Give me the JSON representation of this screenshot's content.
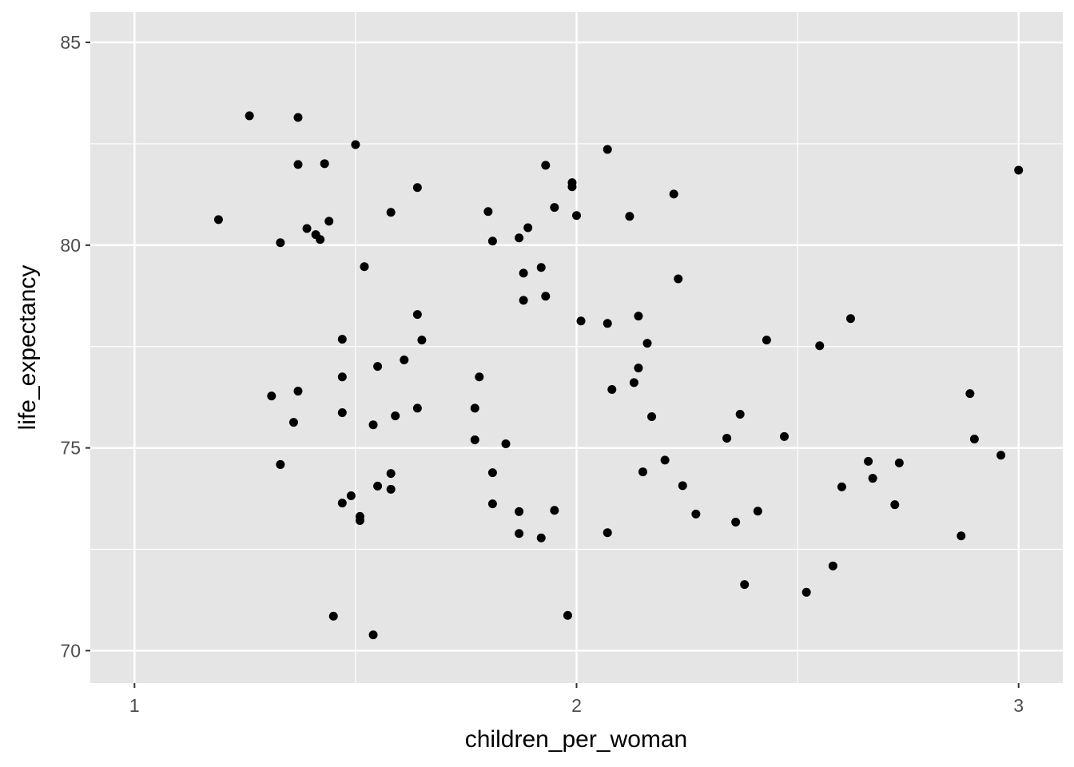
{
  "chart_data": {
    "type": "scatter",
    "title": "",
    "xlabel": "children_per_woman",
    "ylabel": "life_expectancy",
    "xlim": [
      0.9,
      3.1
    ],
    "ylim": [
      69.2,
      85.75
    ],
    "x_ticks": [
      1,
      2,
      3
    ],
    "y_ticks": [
      70,
      75,
      80,
      85
    ],
    "grid": true,
    "colors": {
      "panel": "#e5e5e5",
      "grid": "#ffffff",
      "point": "#000000",
      "tick_text": "#4d4d4d"
    },
    "points": [
      [
        1.19,
        80.63
      ],
      [
        1.26,
        83.19
      ],
      [
        1.37,
        83.15
      ],
      [
        1.37,
        81.99
      ],
      [
        1.43,
        82.01
      ],
      [
        1.5,
        82.48
      ],
      [
        1.33,
        80.06
      ],
      [
        1.39,
        80.41
      ],
      [
        1.41,
        80.26
      ],
      [
        1.42,
        80.14
      ],
      [
        1.44,
        80.59
      ],
      [
        1.52,
        79.47
      ],
      [
        1.58,
        80.81
      ],
      [
        1.64,
        81.42
      ],
      [
        1.31,
        76.28
      ],
      [
        1.37,
        76.4
      ],
      [
        1.36,
        75.63
      ],
      [
        1.33,
        74.59
      ],
      [
        1.47,
        77.68
      ],
      [
        1.47,
        76.75
      ],
      [
        1.47,
        75.87
      ],
      [
        1.47,
        73.64
      ],
      [
        1.49,
        73.82
      ],
      [
        1.51,
        73.31
      ],
      [
        1.51,
        73.21
      ],
      [
        1.45,
        70.85
      ],
      [
        1.54,
        70.39
      ],
      [
        1.54,
        75.57
      ],
      [
        1.55,
        77.01
      ],
      [
        1.55,
        74.06
      ],
      [
        1.58,
        74.37
      ],
      [
        1.58,
        73.98
      ],
      [
        1.59,
        75.79
      ],
      [
        1.61,
        77.17
      ],
      [
        1.64,
        78.29
      ],
      [
        1.65,
        77.66
      ],
      [
        1.64,
        75.98
      ],
      [
        1.77,
        75.98
      ],
      [
        1.78,
        76.75
      ],
      [
        1.77,
        75.2
      ],
      [
        1.84,
        75.1
      ],
      [
        1.81,
        74.39
      ],
      [
        1.81,
        73.62
      ],
      [
        1.8,
        80.83
      ],
      [
        1.81,
        80.1
      ],
      [
        1.87,
        80.18
      ],
      [
        1.89,
        80.43
      ],
      [
        1.88,
        79.31
      ],
      [
        1.88,
        78.64
      ],
      [
        1.92,
        79.45
      ],
      [
        1.93,
        78.74
      ],
      [
        1.93,
        81.97
      ],
      [
        1.95,
        80.93
      ],
      [
        1.99,
        81.54
      ],
      [
        1.99,
        81.44
      ],
      [
        2.0,
        80.73
      ],
      [
        1.87,
        73.43
      ],
      [
        1.87,
        72.89
      ],
      [
        1.92,
        72.78
      ],
      [
        1.95,
        73.46
      ],
      [
        1.98,
        70.87
      ],
      [
        2.01,
        78.13
      ],
      [
        2.07,
        82.36
      ],
      [
        2.07,
        78.07
      ],
      [
        2.08,
        76.44
      ],
      [
        2.07,
        72.91
      ],
      [
        2.12,
        80.71
      ],
      [
        2.22,
        81.26
      ],
      [
        2.23,
        79.17
      ],
      [
        2.14,
        78.25
      ],
      [
        2.16,
        77.58
      ],
      [
        2.14,
        76.97
      ],
      [
        2.13,
        76.61
      ],
      [
        2.17,
        75.77
      ],
      [
        2.2,
        74.7
      ],
      [
        2.15,
        74.41
      ],
      [
        2.24,
        74.07
      ],
      [
        2.27,
        73.37
      ],
      [
        2.34,
        75.24
      ],
      [
        2.37,
        75.83
      ],
      [
        2.36,
        73.17
      ],
      [
        2.41,
        73.44
      ],
      [
        2.38,
        71.63
      ],
      [
        2.43,
        77.66
      ],
      [
        2.47,
        75.28
      ],
      [
        2.52,
        71.44
      ],
      [
        2.55,
        77.52
      ],
      [
        2.58,
        72.09
      ],
      [
        2.6,
        74.04
      ],
      [
        2.62,
        78.19
      ],
      [
        2.66,
        74.67
      ],
      [
        2.67,
        74.25
      ],
      [
        2.73,
        74.63
      ],
      [
        2.72,
        73.6
      ],
      [
        2.87,
        72.83
      ],
      [
        2.89,
        76.34
      ],
      [
        2.9,
        75.22
      ],
      [
        2.96,
        74.82
      ],
      [
        3.0,
        81.85
      ]
    ]
  }
}
